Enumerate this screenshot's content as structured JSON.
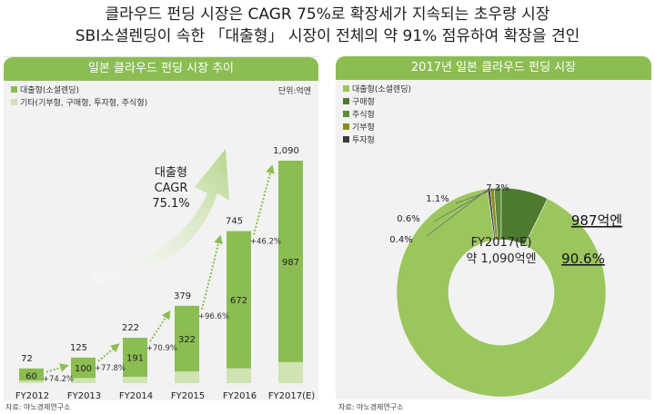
{
  "headline": {
    "line1": "클라우드 펀딩 시장은 CAGR 75%로 확장세가 지속되는 초우량 시장",
    "line2": "SBI소셜렌딩이 속한 「대출형」 시장이 전체의 약 91% 점유하여 확장을 견인"
  },
  "left_panel": {
    "title": "일본 클라우드 펀딩 시장 추이",
    "unit": "단위:억엔",
    "legend": [
      {
        "label": "대출형(소셜렌딩)",
        "color": "#8cbd52"
      },
      {
        "label": "기타(기부형, 구매형, 투자형, 주식형)",
        "color": "#cfe3b3"
      }
    ],
    "cagr_label": [
      "대출형",
      "CAGR",
      "75.1%"
    ],
    "source": "자료: 야노경제연구소"
  },
  "right_panel": {
    "title": "2017년 일본 클라우드 펀딩 시장",
    "legend": [
      {
        "label": "대출형(소셜렌딩)",
        "color": "#9bc65e"
      },
      {
        "label": "구매형",
        "color": "#4e7a2f"
      },
      {
        "label": "주식형",
        "color": "#5e8a3a"
      },
      {
        "label": "기부형",
        "color": "#8b8c1e"
      },
      {
        "label": "투자형",
        "color": "#3a3a3a"
      }
    ],
    "center_label": [
      "FY2017(E)",
      "약 1,090억엔"
    ],
    "lending_amount": "987억엔",
    "lending_share": "90.6%",
    "source": "자료: 야노경제연구소"
  },
  "chart_data": [
    {
      "type": "bar",
      "title": "일본 클라우드 펀딩 시장 추이",
      "categories": [
        "FY2012",
        "FY2013",
        "FY2014",
        "FY2015",
        "FY2016",
        "FY2017(E)"
      ],
      "series": [
        {
          "name": "대출형(소셜렌딩)",
          "values": [
            60,
            100,
            191,
            322,
            672,
            987
          ]
        },
        {
          "name": "기타(기부형, 구매형, 투자형, 주식형)",
          "values": [
            12,
            25,
            31,
            57,
            73,
            103
          ]
        }
      ],
      "totals": [
        "72",
        "125",
        "222",
        "379",
        "745",
        "1,090"
      ],
      "inner_labels": [
        "60",
        "100",
        "191",
        "322",
        "672",
        "987"
      ],
      "growth_labels": [
        "+74.2%",
        "+77.8%",
        "+70.9%",
        "+96.6%",
        "+46.2%"
      ],
      "ylim": [
        0,
        1090
      ],
      "xlabel": "",
      "ylabel": ""
    },
    {
      "type": "pie",
      "title": "2017년 일본 클라우드 펀딩 시장",
      "slices": [
        {
          "name": "대출형(소셜렌딩)",
          "value": 90.6,
          "label": "90.6%",
          "color": "#9bc65e"
        },
        {
          "name": "구매형",
          "value": 7.3,
          "label": "7.3%",
          "color": "#4e7a2f"
        },
        {
          "name": "주식형",
          "value": 1.1,
          "label": "1.1%",
          "color": "#5e8a3a"
        },
        {
          "name": "기부형",
          "value": 0.6,
          "label": "0.6%",
          "color": "#8b8c1e"
        },
        {
          "name": "투자형",
          "value": 0.4,
          "label": "0.4%",
          "color": "#3a3a3a"
        }
      ]
    }
  ]
}
